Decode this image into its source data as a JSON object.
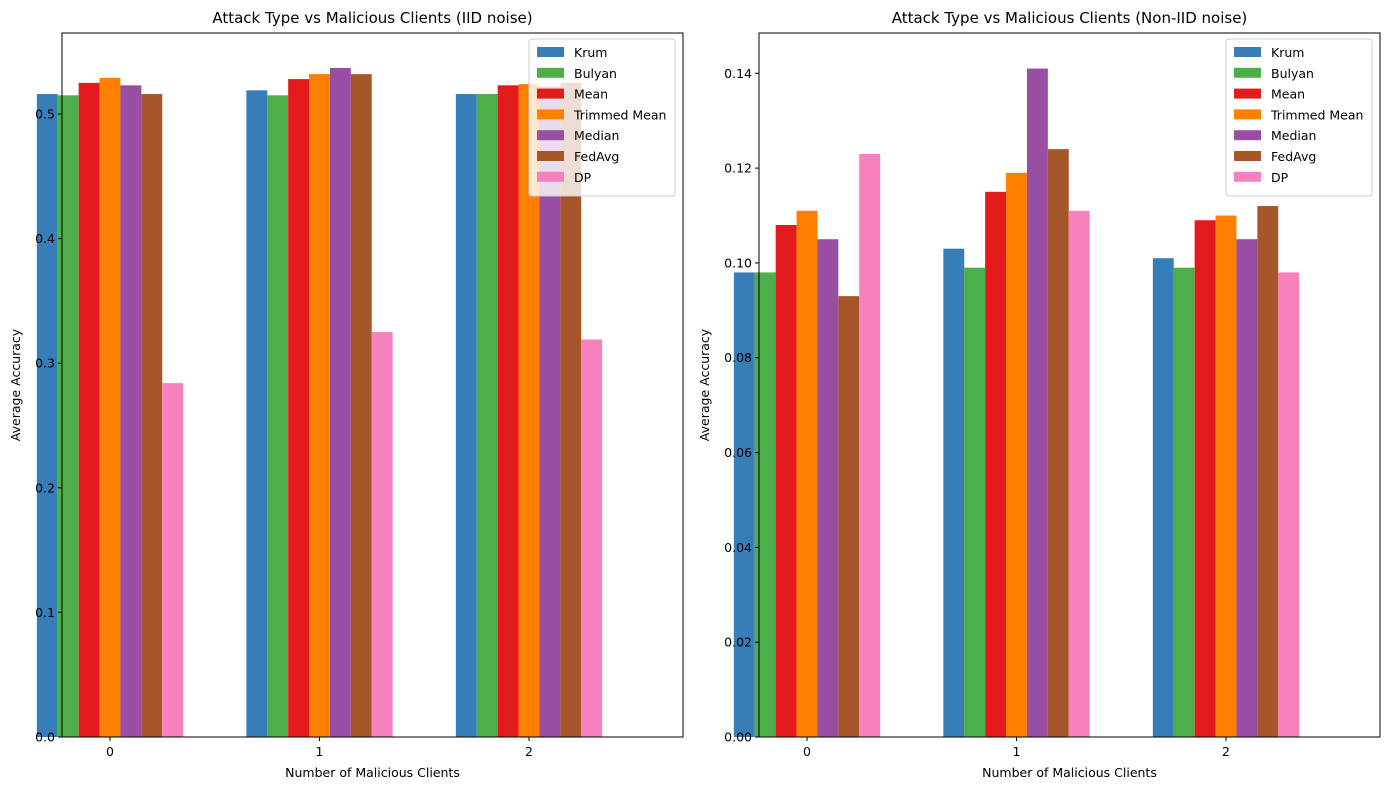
{
  "chart_data": [
    {
      "type": "bar",
      "title": "Attack Type vs Malicious Clients (IID noise)",
      "xlabel": "Number of Malicious Clients",
      "ylabel": "Average Accuracy",
      "categories": [
        "0",
        "1",
        "2"
      ],
      "ylim": [
        0,
        0.565
      ],
      "yticks": [
        "0.0",
        "0.1",
        "0.2",
        "0.3",
        "0.4",
        "0.5"
      ],
      "legend_position": "top-right",
      "grid": false,
      "series": [
        {
          "name": "Krum",
          "color": "#377eb8",
          "values": [
            0.516,
            0.519,
            0.516
          ]
        },
        {
          "name": "Bulyan",
          "color": "#4daf4a",
          "values": [
            0.515,
            0.515,
            0.516
          ]
        },
        {
          "name": "Mean",
          "color": "#e41a1c",
          "values": [
            0.525,
            0.528,
            0.523
          ]
        },
        {
          "name": "Trimmed Mean",
          "color": "#ff7f00",
          "values": [
            0.529,
            0.532,
            0.524
          ]
        },
        {
          "name": "Median",
          "color": "#984ea3",
          "values": [
            0.523,
            0.537,
            0.522
          ]
        },
        {
          "name": "FedAvg",
          "color": "#a65628",
          "values": [
            0.516,
            0.532,
            0.525
          ]
        },
        {
          "name": "DP",
          "color": "#f781bf",
          "values": [
            0.284,
            0.325,
            0.319
          ]
        }
      ]
    },
    {
      "type": "bar",
      "title": "Attack Type vs Malicious Clients (Non-IID noise)",
      "xlabel": "Number of Malicious Clients",
      "ylabel": "Average Accuracy",
      "categories": [
        "0",
        "1",
        "2"
      ],
      "ylim": [
        0,
        0.1485
      ],
      "yticks": [
        "0.00",
        "0.02",
        "0.04",
        "0.06",
        "0.08",
        "0.10",
        "0.12",
        "0.14"
      ],
      "legend_position": "top-right",
      "grid": false,
      "series": [
        {
          "name": "Krum",
          "color": "#377eb8",
          "values": [
            0.098,
            0.103,
            0.101
          ]
        },
        {
          "name": "Bulyan",
          "color": "#4daf4a",
          "values": [
            0.098,
            0.099,
            0.099
          ]
        },
        {
          "name": "Mean",
          "color": "#e41a1c",
          "values": [
            0.108,
            0.115,
            0.109
          ]
        },
        {
          "name": "Trimmed Mean",
          "color": "#ff7f00",
          "values": [
            0.111,
            0.119,
            0.11
          ]
        },
        {
          "name": "Median",
          "color": "#984ea3",
          "values": [
            0.105,
            0.141,
            0.105
          ]
        },
        {
          "name": "FedAvg",
          "color": "#a65628",
          "values": [
            0.093,
            0.124,
            0.112
          ]
        },
        {
          "name": "DP",
          "color": "#f781bf",
          "values": [
            0.123,
            0.111,
            0.098
          ]
        }
      ]
    }
  ]
}
